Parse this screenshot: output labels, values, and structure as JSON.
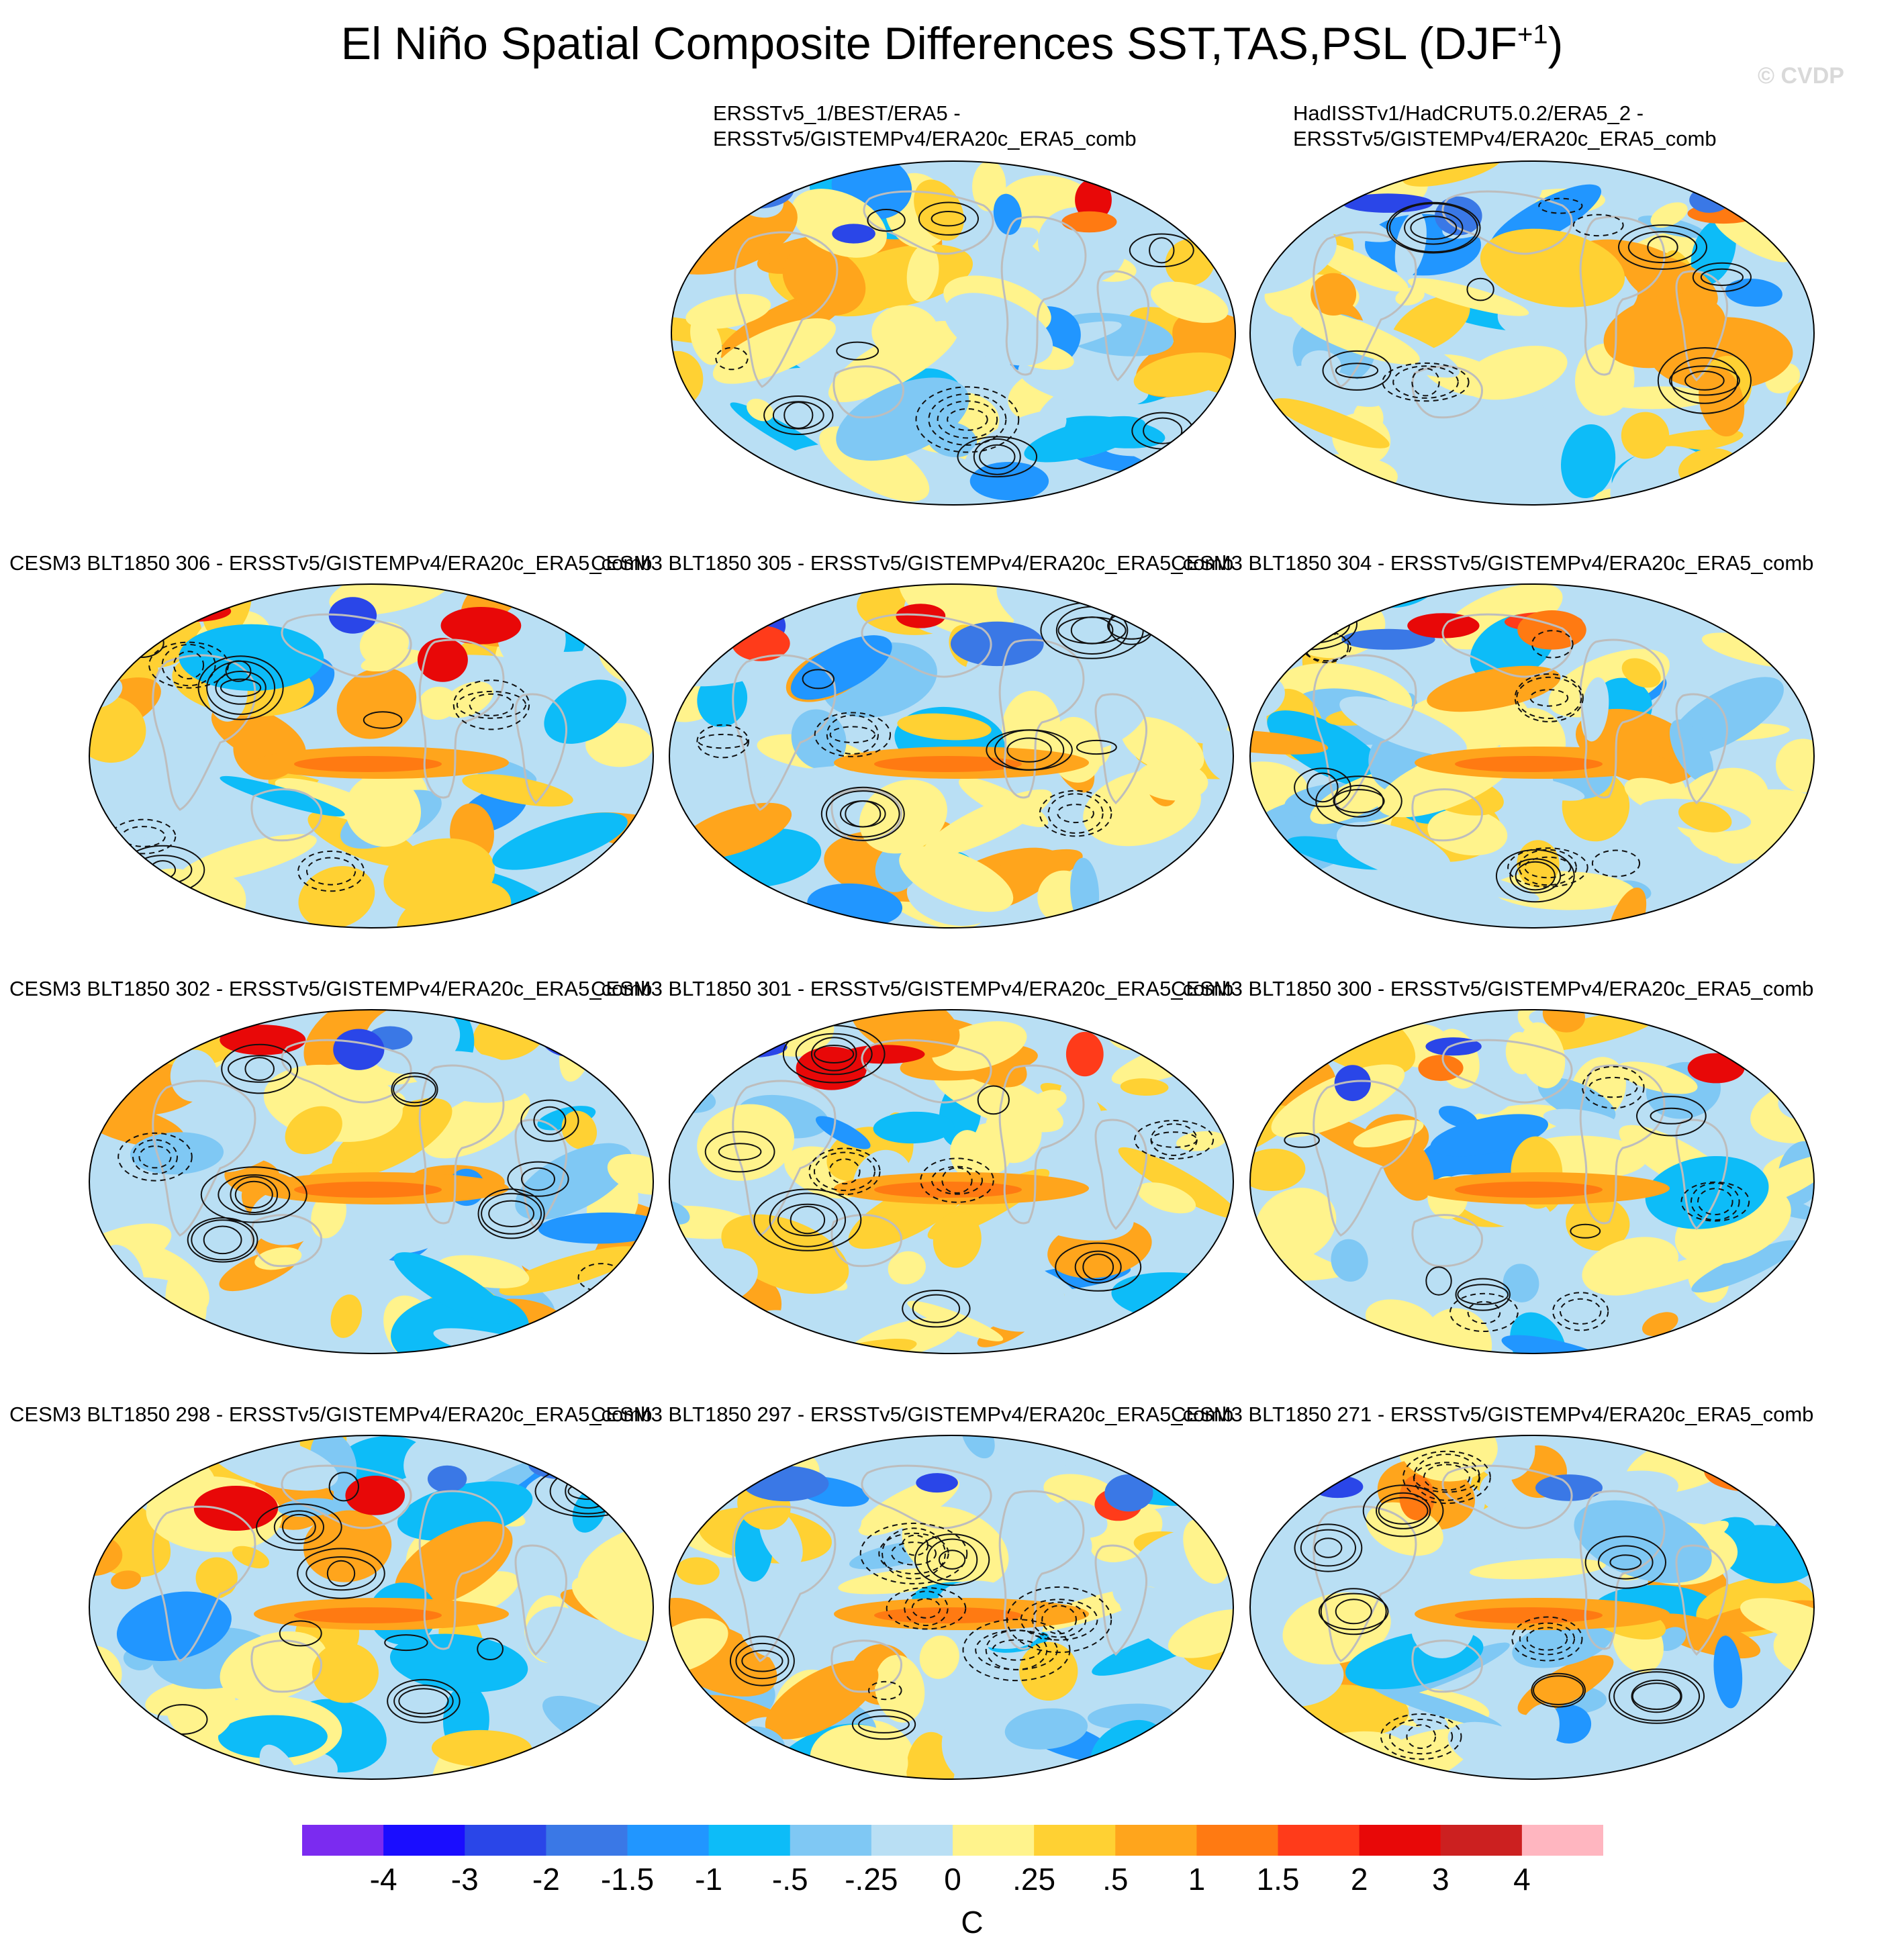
{
  "figure": {
    "title_main": "El Niño Spatial Composite Differences SST,TAS,PSL (DJF",
    "title_sup": "+1",
    "title_close": ")",
    "watermark": "© CVDP"
  },
  "panels": [
    {
      "line1": "ERSSTv5_1/BEST/ERA5 -",
      "line2": "ERSSTv5/GISTEMPv4/ERA20c_ERA5_comb",
      "seed": 11
    },
    {
      "line1": "HadISSTv1/HadCRUT5.0.2/ERA5_2 -",
      "line2": "ERSSTv5/GISTEMPv4/ERA20c_ERA5_comb",
      "seed": 23
    },
    {
      "line1": "CESM3 BLT1850 306 - ERSSTv5/GISTEMPv4/ERA20c_ERA5_comb",
      "line2": "",
      "seed": 37
    },
    {
      "line1": "CESM3 BLT1850 305 - ERSSTv5/GISTEMPv4/ERA20c_ERA5_comb",
      "line2": "",
      "seed": 41
    },
    {
      "line1": "CESM3 BLT1850 304 - ERSSTv5/GISTEMPv4/ERA20c_ERA5_comb",
      "line2": "",
      "seed": 53
    },
    {
      "line1": "CESM3 BLT1850 302 - ERSSTv5/GISTEMPv4/ERA20c_ERA5_comb",
      "line2": "",
      "seed": 67
    },
    {
      "line1": "CESM3 BLT1850 301 - ERSSTv5/GISTEMPv4/ERA20c_ERA5_comb",
      "line2": "",
      "seed": 71
    },
    {
      "line1": "CESM3 BLT1850 300 - ERSSTv5/GISTEMPv4/ERA20c_ERA5_comb",
      "line2": "",
      "seed": 83
    },
    {
      "line1": "CESM3 BLT1850 298 - ERSSTv5/GISTEMPv4/ERA20c_ERA5_comb",
      "line2": "",
      "seed": 97
    },
    {
      "line1": "CESM3 BLT1850 297 - ERSSTv5/GISTEMPv4/ERA20c_ERA5_comb",
      "line2": "",
      "seed": 101
    },
    {
      "line1": "CESM3 BLT1850 271 - ERSSTv5/GISTEMPv4/ERA20c_ERA5_comb",
      "line2": "",
      "seed": 113
    }
  ],
  "colorbar": {
    "colors": [
      "#7b2bf0",
      "#1a0dff",
      "#2a46e8",
      "#3a78e6",
      "#2196ff",
      "#0dbcf8",
      "#7fc8f4",
      "#b9dff4",
      "#fff38c",
      "#ffd133",
      "#ffa51c",
      "#ff7a12",
      "#ff3b1a",
      "#e80808",
      "#cc2020",
      "#ffb6c0"
    ],
    "labels": [
      "-4",
      "-3",
      "-2",
      "-1.5",
      "-1",
      "-.5",
      "-.25",
      "0",
      ".25",
      ".5",
      "1",
      "1.5",
      "2",
      "3",
      "4"
    ],
    "units": "C"
  }
}
